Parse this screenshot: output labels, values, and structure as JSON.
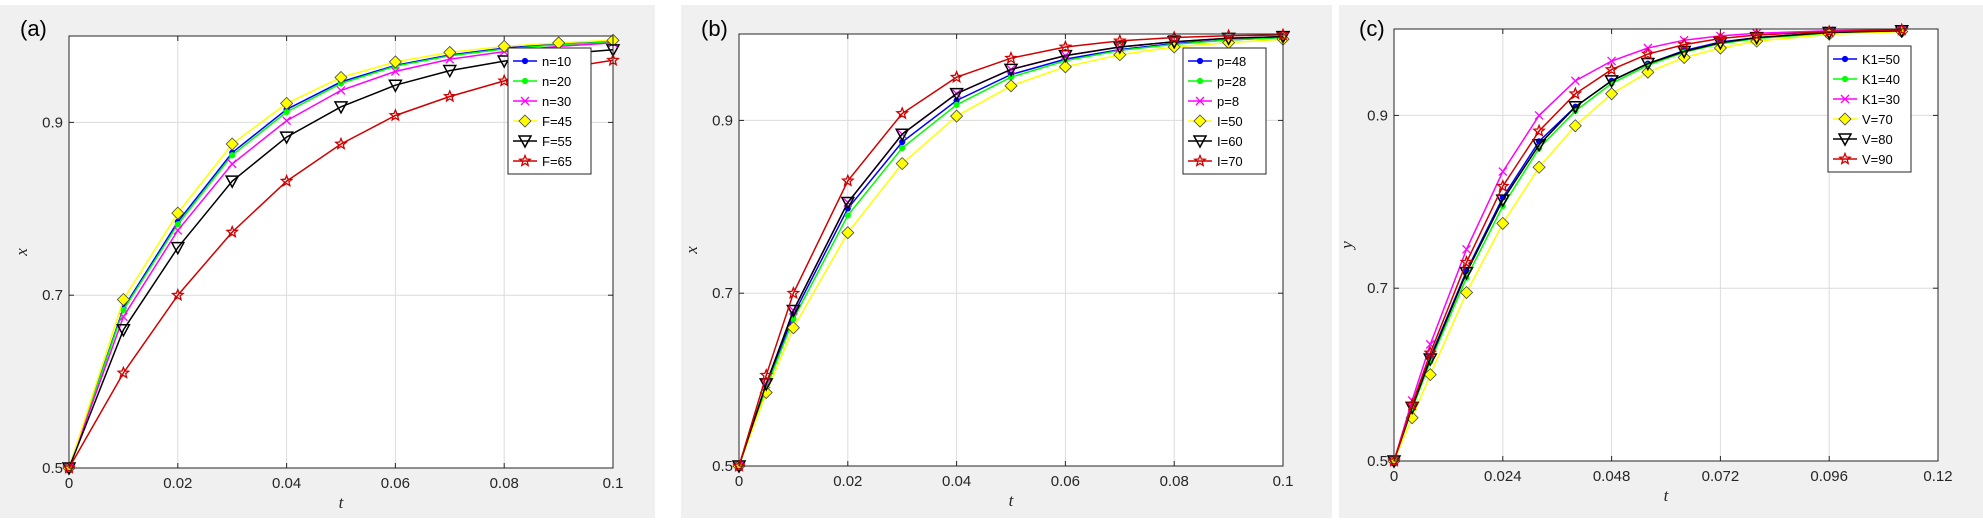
{
  "chart_data": [
    {
      "type": "line",
      "panel_label": "(a)",
      "xlabel": "t",
      "ylabel": "x",
      "xlim": [
        0,
        0.1
      ],
      "ylim": [
        0.5,
        1.0
      ],
      "xticks": [
        "0",
        "0.02",
        "0.04",
        "0.06",
        "0.08",
        "0.1"
      ],
      "yticks": [
        "0.5",
        "0.7",
        "0.9"
      ],
      "grid": true,
      "legend_position": "top-right",
      "x": [
        0,
        0.01,
        0.02,
        0.03,
        0.04,
        0.05,
        0.06,
        0.07,
        0.08,
        0.09,
        0.1
      ],
      "series": [
        {
          "name": "n=10",
          "color": "#0000ff",
          "marker": "dot",
          "values": [
            0.5,
            0.685,
            0.785,
            0.865,
            0.915,
            0.947,
            0.966,
            0.978,
            0.986,
            0.991,
            0.994
          ]
        },
        {
          "name": "n=20",
          "color": "#00ff00",
          "marker": "dot",
          "values": [
            0.5,
            0.683,
            0.782,
            0.862,
            0.912,
            0.945,
            0.965,
            0.977,
            0.985,
            0.99,
            0.993
          ]
        },
        {
          "name": "n=30",
          "color": "#ff00ff",
          "marker": "x",
          "values": [
            0.5,
            0.675,
            0.775,
            0.852,
            0.902,
            0.937,
            0.959,
            0.973,
            0.982,
            0.988,
            0.992
          ]
        },
        {
          "name": "F=45",
          "color": "#ffff00",
          "marker": "diamond",
          "values": [
            0.5,
            0.695,
            0.795,
            0.875,
            0.922,
            0.952,
            0.97,
            0.981,
            0.988,
            0.992,
            0.995
          ]
        },
        {
          "name": "F=55",
          "color": "#000000",
          "marker": "triangle-down",
          "values": [
            0.5,
            0.66,
            0.755,
            0.832,
            0.883,
            0.918,
            0.943,
            0.96,
            0.971,
            0.979,
            0.984
          ]
        },
        {
          "name": "F=65",
          "color": "#d00000",
          "marker": "star",
          "values": [
            0.5,
            0.61,
            0.7,
            0.773,
            0.832,
            0.875,
            0.908,
            0.93,
            0.948,
            0.962,
            0.972
          ]
        }
      ]
    },
    {
      "type": "line",
      "panel_label": "(b)",
      "xlabel": "t",
      "ylabel": "x",
      "xlim": [
        0,
        0.1
      ],
      "ylim": [
        0.5,
        1.0
      ],
      "xticks": [
        "0",
        "0.02",
        "0.04",
        "0.06",
        "0.08",
        "0.1"
      ],
      "yticks": [
        "0.5",
        "0.7",
        "0.9"
      ],
      "grid": true,
      "legend_position": "top-right",
      "x": [
        0,
        0.005,
        0.01,
        0.02,
        0.03,
        0.04,
        0.05,
        0.06,
        0.07,
        0.08,
        0.09,
        0.1
      ],
      "series": [
        {
          "name": "p=48",
          "color": "#0000ff",
          "marker": "dot",
          "values": [
            0.5,
            0.592,
            0.675,
            0.798,
            0.875,
            0.923,
            0.953,
            0.971,
            0.982,
            0.989,
            0.993,
            0.996
          ]
        },
        {
          "name": "p=28",
          "color": "#00ff00",
          "marker": "dot",
          "values": [
            0.5,
            0.59,
            0.67,
            0.79,
            0.868,
            0.918,
            0.95,
            0.969,
            0.981,
            0.988,
            0.993,
            0.996
          ]
        },
        {
          "name": "p=8",
          "color": "#ff00ff",
          "marker": "x",
          "values": [
            0.5,
            0.595,
            0.68,
            0.805,
            0.884,
            0.931,
            0.959,
            0.975,
            0.985,
            0.991,
            0.995,
            0.997
          ]
        },
        {
          "name": "I=50",
          "color": "#ffff00",
          "marker": "diamond",
          "values": [
            0.5,
            0.585,
            0.66,
            0.77,
            0.85,
            0.905,
            0.94,
            0.962,
            0.976,
            0.985,
            0.99,
            0.994
          ]
        },
        {
          "name": "I=60",
          "color": "#000000",
          "marker": "triangle-down",
          "values": [
            0.5,
            0.595,
            0.68,
            0.805,
            0.884,
            0.931,
            0.959,
            0.975,
            0.985,
            0.991,
            0.995,
            0.997
          ]
        },
        {
          "name": "I=70",
          "color": "#d00000",
          "marker": "star",
          "values": [
            0.5,
            0.605,
            0.7,
            0.83,
            0.908,
            0.95,
            0.972,
            0.985,
            0.992,
            0.996,
            0.998,
            0.999
          ]
        }
      ]
    },
    {
      "type": "line",
      "panel_label": "(c)",
      "xlabel": "t",
      "ylabel": "y",
      "xlim": [
        0,
        0.12
      ],
      "ylim": [
        0.5,
        1.0
      ],
      "xticks": [
        "0",
        "0.024",
        "0.048",
        "0.072",
        "0.096",
        "0.12"
      ],
      "yticks": [
        "0.5",
        "0.7",
        "0.9"
      ],
      "grid": true,
      "legend_position": "top-right",
      "x": [
        0,
        0.004,
        0.008,
        0.016,
        0.024,
        0.032,
        0.04,
        0.048,
        0.056,
        0.064,
        0.072,
        0.08,
        0.096,
        0.112
      ],
      "series": [
        {
          "name": "K1=50",
          "color": "#0000ff",
          "marker": "dot",
          "values": [
            0.5,
            0.563,
            0.62,
            0.72,
            0.805,
            0.87,
            0.91,
            0.94,
            0.96,
            0.975,
            0.985,
            0.99,
            0.996,
            0.998
          ]
        },
        {
          "name": "K1=40",
          "color": "#00ff00",
          "marker": "dot",
          "values": [
            0.5,
            0.56,
            0.615,
            0.712,
            0.795,
            0.862,
            0.905,
            0.937,
            0.958,
            0.973,
            0.983,
            0.989,
            0.995,
            0.998
          ]
        },
        {
          "name": "K1=30",
          "color": "#ff00ff",
          "marker": "x",
          "values": [
            0.5,
            0.57,
            0.635,
            0.745,
            0.835,
            0.9,
            0.94,
            0.963,
            0.978,
            0.987,
            0.992,
            0.995,
            0.998,
            0.999
          ]
        },
        {
          "name": "V=70",
          "color": "#ffff00",
          "marker": "diamond",
          "values": [
            0.5,
            0.55,
            0.6,
            0.695,
            0.775,
            0.84,
            0.888,
            0.925,
            0.95,
            0.967,
            0.978,
            0.986,
            0.994,
            0.997
          ]
        },
        {
          "name": "V=80",
          "color": "#000000",
          "marker": "triangle-down",
          "values": [
            0.5,
            0.562,
            0.618,
            0.718,
            0.802,
            0.866,
            0.91,
            0.94,
            0.96,
            0.974,
            0.984,
            0.99,
            0.996,
            0.998
          ]
        },
        {
          "name": "V=90",
          "color": "#d00000",
          "marker": "star",
          "values": [
            0.5,
            0.565,
            0.625,
            0.73,
            0.818,
            0.882,
            0.925,
            0.953,
            0.971,
            0.982,
            0.989,
            0.993,
            0.997,
            0.999
          ]
        }
      ]
    }
  ]
}
